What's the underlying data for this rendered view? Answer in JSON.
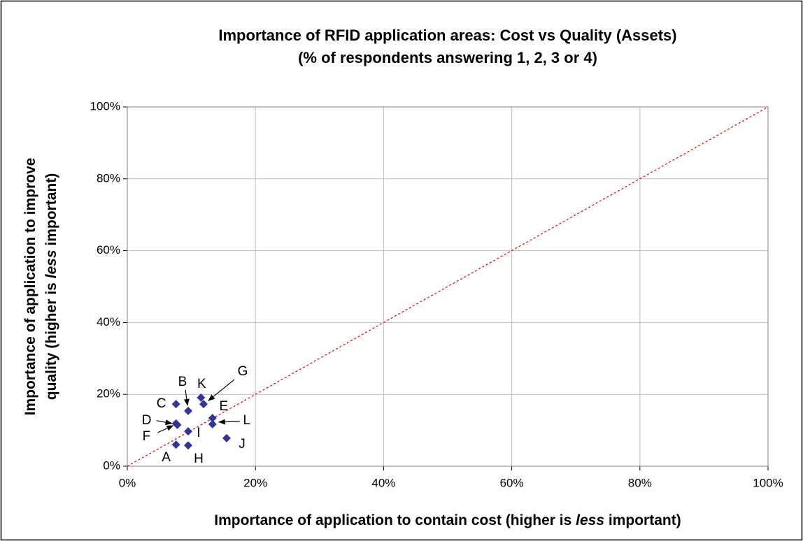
{
  "chart_data": {
    "type": "scatter",
    "title": [
      "Importance of RFID application areas: Cost vs Quality (Assets)",
      "(% of respondents answering 1, 2, 3 or 4)"
    ],
    "x_label": [
      "Importance of application to contain cost (higher is ",
      "less",
      " important)"
    ],
    "y_label": [
      [
        "Importance of application to improve"
      ],
      [
        "quality (higher is ",
        "less",
        " important)"
      ]
    ],
    "series": [
      {
        "color": "#333399",
        "labels": [
          "A",
          "B",
          "C",
          "D",
          "E",
          "F",
          "G",
          "H",
          "I",
          "J",
          "K",
          "L"
        ],
        "x": [
          7.6,
          9.5,
          7.6,
          7.6,
          13.3,
          7.8,
          11.9,
          9.5,
          9.5,
          15.5,
          11.5,
          13.3
        ],
        "values": [
          6.0,
          15.4,
          17.3,
          11.9,
          13.4,
          11.5,
          17.3,
          5.8,
          9.7,
          7.8,
          19.1,
          11.7
        ]
      }
    ],
    "reference_line_color": "#e00000",
    "xlim": [
      0,
      100
    ],
    "ylim": [
      0,
      100
    ],
    "xticks": [
      {
        "value": 0,
        "label": "0%"
      },
      {
        "value": 20,
        "label": "20%"
      },
      {
        "value": 40,
        "label": "40%"
      },
      {
        "value": 60,
        "label": "60%"
      },
      {
        "value": 80,
        "label": "80%"
      },
      {
        "value": 100,
        "label": "100%"
      }
    ],
    "yticks": [
      {
        "value": 0,
        "label": "0%"
      },
      {
        "value": 20,
        "label": "20%"
      },
      {
        "value": 40,
        "label": "40%"
      },
      {
        "value": 60,
        "label": "60%"
      },
      {
        "value": 80,
        "label": "80%"
      },
      {
        "value": 100,
        "label": "100%"
      }
    ],
    "grid": true
  }
}
